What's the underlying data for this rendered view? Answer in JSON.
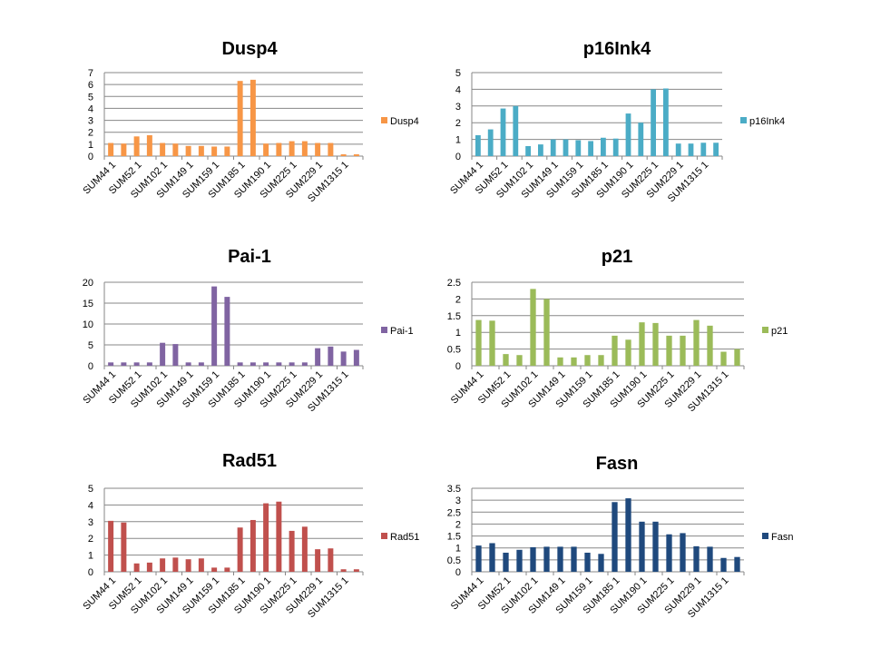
{
  "chart_data": [
    {
      "type": "bar",
      "title": "Dusp4",
      "series_name": "Dusp4",
      "color": "#F79646",
      "ylim": [
        0,
        7
      ],
      "yticks": [
        0,
        1,
        2,
        3,
        4,
        5,
        6,
        7
      ],
      "tick_labels": [
        "SUM44 1",
        "SUM52 1",
        "SUM102 1",
        "SUM149 1",
        "SUM159 1",
        "SUM185 1",
        "SUM190 1",
        "SUM225 1",
        "SUM229 1",
        "SUM1315 1"
      ],
      "values": [
        1.1,
        1.05,
        1.65,
        1.75,
        1.1,
        1.05,
        0.85,
        0.85,
        0.8,
        0.8,
        6.3,
        6.4,
        1.05,
        1.1,
        1.25,
        1.25,
        1.1,
        1.1,
        0.15,
        0.15
      ],
      "grid": true,
      "legend": "right"
    },
    {
      "type": "bar",
      "title": "p16Ink4",
      "series_name": "p16Ink4",
      "color": "#4BACC6",
      "ylim": [
        0,
        5
      ],
      "yticks": [
        0,
        1,
        2,
        3,
        4,
        5
      ],
      "tick_labels": [
        "SUM44 1",
        "SUM52 1",
        "SUM102 1",
        "SUM149 1",
        "SUM159 1",
        "SUM185 1",
        "SUM190 1",
        "SUM225 1",
        "SUM229 1",
        "SUM1315 1"
      ],
      "values": [
        1.25,
        1.6,
        2.85,
        3.0,
        0.6,
        0.7,
        1.0,
        1.0,
        0.95,
        0.9,
        1.1,
        1.05,
        2.55,
        2.0,
        4.0,
        4.05,
        0.75,
        0.75,
        0.8,
        0.8
      ],
      "grid": true,
      "legend": "right"
    },
    {
      "type": "bar",
      "title": "Pai-1",
      "series_name": "Pai-1",
      "color": "#8064A2",
      "ylim": [
        0,
        20
      ],
      "yticks": [
        0,
        5,
        10,
        15,
        20
      ],
      "tick_labels": [
        "SUM44 1",
        "SUM52 1",
        "SUM102 1",
        "SUM149 1",
        "SUM159 1",
        "SUM185 1",
        "SUM190 1",
        "SUM225 1",
        "SUM229 1",
        "SUM1315 1"
      ],
      "values": [
        0.8,
        0.8,
        0.8,
        0.8,
        5.5,
        5.2,
        0.8,
        0.8,
        19.0,
        16.5,
        0.8,
        0.8,
        0.8,
        0.8,
        0.8,
        0.8,
        4.2,
        4.6,
        3.4,
        3.8
      ],
      "grid": true,
      "legend": "right"
    },
    {
      "type": "bar",
      "title": "p21",
      "series_name": "p21",
      "color": "#9BBB59",
      "ylim": [
        0,
        2.5
      ],
      "yticks": [
        0,
        0.5,
        1,
        1.5,
        2,
        2.5
      ],
      "tick_labels": [
        "SUM44 1",
        "SUM52 1",
        "SUM102 1",
        "SUM149 1",
        "SUM159 1",
        "SUM185 1",
        "SUM190 1",
        "SUM225 1",
        "SUM229 1",
        "SUM1315 1"
      ],
      "values": [
        1.37,
        1.35,
        0.35,
        0.32,
        2.3,
        2.0,
        0.25,
        0.25,
        0.32,
        0.32,
        0.9,
        0.78,
        1.3,
        1.28,
        0.9,
        0.9,
        1.37,
        1.2,
        0.42,
        0.5
      ],
      "grid": true,
      "legend": "right"
    },
    {
      "type": "bar",
      "title": "Rad51",
      "series_name": "Rad51",
      "color": "#C0504D",
      "ylim": [
        0,
        5
      ],
      "yticks": [
        0,
        1,
        2,
        3,
        4,
        5
      ],
      "tick_labels": [
        "SUM44 1",
        "SUM52 1",
        "SUM102 1",
        "SUM149 1",
        "SUM159 1",
        "SUM185 1",
        "SUM190 1",
        "SUM225 1",
        "SUM229 1",
        "SUM1315 1"
      ],
      "values": [
        3.05,
        2.95,
        0.5,
        0.55,
        0.8,
        0.85,
        0.75,
        0.8,
        0.25,
        0.25,
        2.65,
        3.1,
        4.1,
        4.2,
        2.45,
        2.7,
        1.35,
        1.4,
        0.15,
        0.15
      ],
      "grid": true,
      "legend": "right"
    },
    {
      "type": "bar",
      "title": "Fasn",
      "series_name": "Fasn",
      "color": "#1F497D",
      "ylim": [
        0,
        3.5
      ],
      "yticks": [
        0,
        0.5,
        1,
        1.5,
        2,
        2.5,
        3,
        3.5
      ],
      "tick_labels": [
        "SUM44 1",
        "SUM52 1",
        "SUM102 1",
        "SUM149 1",
        "SUM159 1",
        "SUM185 1",
        "SUM190 1",
        "SUM225 1",
        "SUM229 1",
        "SUM1315 1"
      ],
      "values": [
        1.1,
        1.2,
        0.8,
        0.92,
        1.03,
        1.05,
        1.05,
        1.05,
        0.8,
        0.75,
        2.92,
        3.08,
        2.1,
        2.1,
        1.57,
        1.62,
        1.07,
        1.05,
        0.58,
        0.62
      ],
      "grid": true,
      "legend": "right"
    }
  ]
}
